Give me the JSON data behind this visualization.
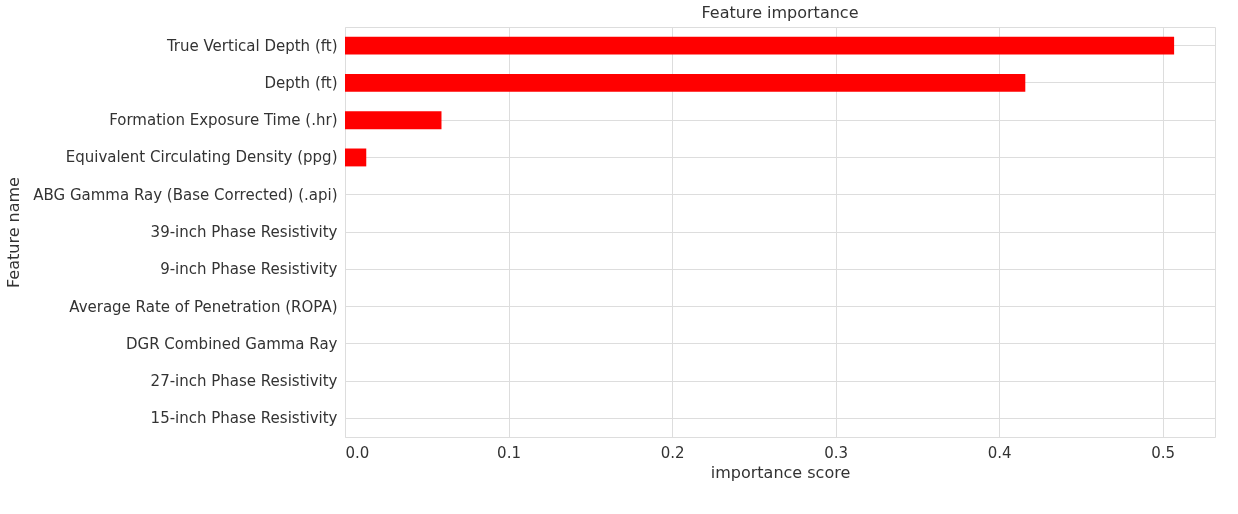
{
  "chart_data": {
    "type": "bar",
    "orientation": "horizontal",
    "title": "Feature importance",
    "xlabel": "importance score",
    "ylabel": "Feature name",
    "categories": [
      "True Vertical Depth (ft)",
      "Depth (ft)",
      "Formation Exposure Time (.hr)",
      "Equivalent Circulating Density (ppg)",
      "ABG Gamma Ray (Base Corrected) (.api)",
      "39-inch Phase Resistivity",
      "9-inch Phase Resistivity",
      "Average Rate of Penetration (ROPA)",
      "DGR Combined Gamma Ray",
      "27-inch Phase Resistivity",
      "15-inch Phase Resistivity"
    ],
    "values": [
      0.507,
      0.416,
      0.059,
      0.013,
      0,
      0,
      0,
      0,
      0,
      0,
      0
    ],
    "color": "#ff0000",
    "xlim": [
      0,
      0.532
    ],
    "xticks": [
      {
        "value": 0,
        "label": "0.0"
      },
      0.1,
      0.2,
      0.3,
      0.4,
      0.5
    ],
    "grid": true
  }
}
